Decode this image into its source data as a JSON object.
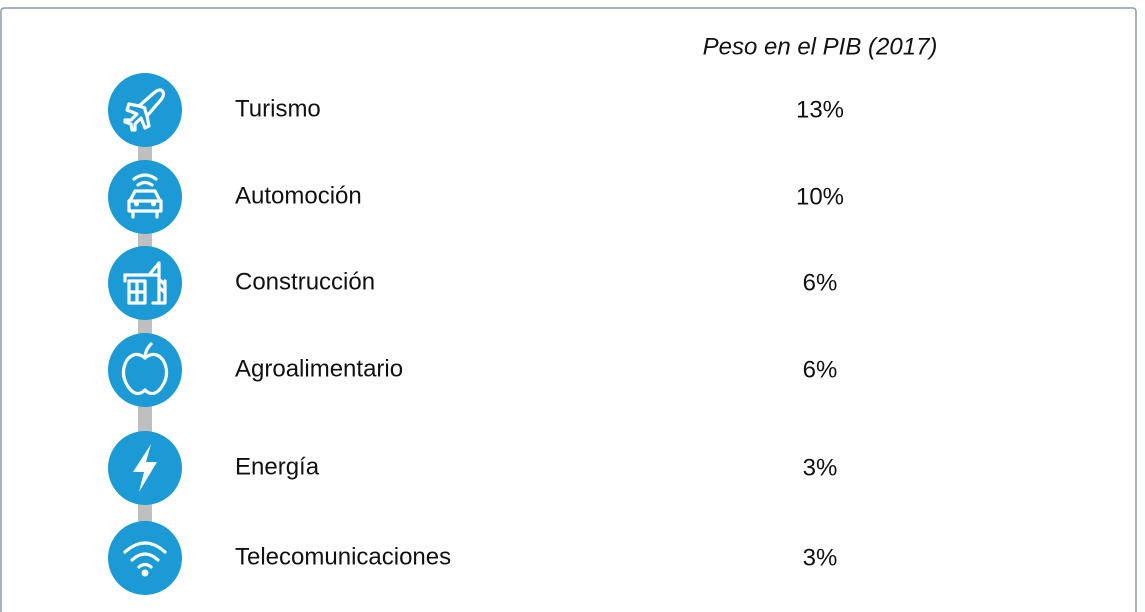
{
  "header": {
    "title": "Peso en el PIB (2017)"
  },
  "rows": [
    {
      "label": "Turismo",
      "value": "13%"
    },
    {
      "label": "Automoción",
      "value": "10%"
    },
    {
      "label": "Construcción",
      "value": "6%"
    },
    {
      "label": "Agroalimentario",
      "value": "6%"
    },
    {
      "label": "Energía",
      "value": "3%"
    },
    {
      "label": "Telecomunicaciones",
      "value": "3%"
    }
  ]
}
